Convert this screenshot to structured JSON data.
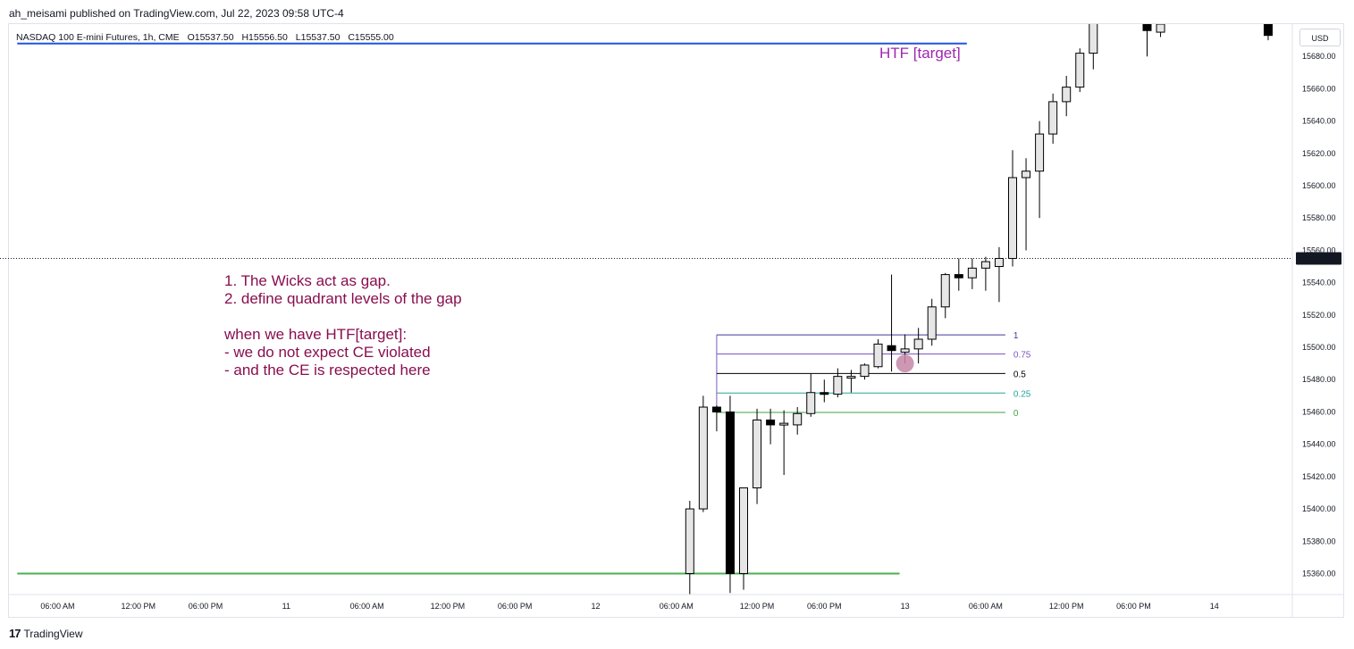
{
  "header": {
    "published": "ah_meisami published on TradingView.com, Jul 22, 2023 09:58 UTC-4"
  },
  "legend": {
    "symbol": "NASDAQ 100 E-mini Futures, 1h, CME",
    "open": "O15537.50",
    "high": "H15556.50",
    "low": "L15537.50",
    "close": "C15555.00"
  },
  "currency": "USD",
  "annotation": "1. The Wicks act as gap.\n2. define quadrant levels of the gap\n\nwhen we have HTF[target]:\n- we do not expect CE violated\n- and the CE is respected here",
  "htf_label": "HTF [target]",
  "footer": {
    "brand": "TradingView",
    "logo": "17"
  },
  "colors": {
    "bull_fill": "#e6e6e6",
    "bear_fill": "#000000",
    "candle_border": "#000000",
    "blue_line": "#1e53e5",
    "green_line": "#4caf50",
    "annotation": "#880e4f",
    "htf": "#9c27b0",
    "circle": "#c586a8"
  },
  "chart_data": {
    "type": "candlestick",
    "y_axis": {
      "ylim": [
        15347,
        15700
      ],
      "ticks": [
        15360,
        15380,
        15400,
        15420,
        15440,
        15460,
        15480,
        15500,
        15520,
        15540,
        15560,
        15580,
        15600,
        15620,
        15640,
        15660,
        15680
      ],
      "tick_labels": [
        "15360.00",
        "15380.00",
        "15400.00",
        "15420.00",
        "15440.00",
        "15460.00",
        "15480.00",
        "15500.00",
        "15520.00",
        "15540.00",
        "15560.00",
        "15580.00",
        "15600.00",
        "15620.00",
        "15640.00",
        "15660.00",
        "15680.00"
      ]
    },
    "x_axis": {
      "bar_range": [
        -54,
        56
      ],
      "ticks": [
        {
          "bar": -51,
          "label": "06:00 AM"
        },
        {
          "bar": -45,
          "label": "12:00 PM"
        },
        {
          "bar": -40,
          "label": "06:00 PM"
        },
        {
          "bar": -34,
          "label": "11"
        },
        {
          "bar": -28,
          "label": "06:00 AM"
        },
        {
          "bar": -22,
          "label": "12:00 PM"
        },
        {
          "bar": -17,
          "label": "06:00 PM"
        },
        {
          "bar": -11,
          "label": "12"
        },
        {
          "bar": -5,
          "label": "06:00 AM"
        },
        {
          "bar": 1,
          "label": "12:00 PM"
        },
        {
          "bar": 6,
          "label": "06:00 PM"
        },
        {
          "bar": 12,
          "label": "13"
        },
        {
          "bar": 18,
          "label": "06:00 AM"
        },
        {
          "bar": 24,
          "label": "12:00 PM"
        },
        {
          "bar": 29,
          "label": "06:00 PM"
        },
        {
          "bar": 35,
          "label": "14"
        }
      ]
    },
    "last_price": {
      "value": 15555,
      "label": "15555.00"
    },
    "candles": [
      {
        "bar": -4,
        "o": 15360,
        "h": 15405,
        "l": 15347,
        "c": 15400
      },
      {
        "bar": -3,
        "o": 15400,
        "h": 15470,
        "l": 15398,
        "c": 15463
      },
      {
        "bar": -2,
        "o": 15463,
        "h": 15464,
        "l": 15448,
        "c": 15460
      },
      {
        "bar": -1,
        "o": 15460,
        "h": 15470,
        "l": 15348,
        "c": 15360
      },
      {
        "bar": 0,
        "o": 15360,
        "h": 15413,
        "l": 15350,
        "c": 15413
      },
      {
        "bar": 1,
        "o": 15413,
        "h": 15462,
        "l": 15403,
        "c": 15455
      },
      {
        "bar": 2,
        "o": 15455,
        "h": 15462,
        "l": 15440,
        "c": 15452
      },
      {
        "bar": 3,
        "o": 15452,
        "h": 15461,
        "l": 15421,
        "c": 15453
      },
      {
        "bar": 4,
        "o": 15452,
        "h": 15463,
        "l": 15446,
        "c": 15459
      },
      {
        "bar": 5,
        "o": 15459,
        "h": 15484,
        "l": 15457,
        "c": 15472
      },
      {
        "bar": 6,
        "o": 15472,
        "h": 15480,
        "l": 15466,
        "c": 15471
      },
      {
        "bar": 7,
        "o": 15471,
        "h": 15487,
        "l": 15469,
        "c": 15482
      },
      {
        "bar": 8,
        "o": 15482,
        "h": 15486,
        "l": 15472,
        "c": 15482
      },
      {
        "bar": 9,
        "o": 15482,
        "h": 15490,
        "l": 15480,
        "c": 15489
      },
      {
        "bar": 10,
        "o": 15488,
        "h": 15505,
        "l": 15487,
        "c": 15502
      },
      {
        "bar": 11,
        "o": 15501,
        "h": 15545,
        "l": 15485,
        "c": 15498
      },
      {
        "bar": 12,
        "o": 15497,
        "h": 15508,
        "l": 15490,
        "c": 15499
      },
      {
        "bar": 13,
        "o": 15499,
        "h": 15512,
        "l": 15490,
        "c": 15505
      },
      {
        "bar": 14,
        "o": 15505,
        "h": 15530,
        "l": 15501,
        "c": 15525
      },
      {
        "bar": 15,
        "o": 15525,
        "h": 15546,
        "l": 15518,
        "c": 15545
      },
      {
        "bar": 16,
        "o": 15545,
        "h": 15555,
        "l": 15535,
        "c": 15543
      },
      {
        "bar": 17,
        "o": 15543,
        "h": 15555,
        "l": 15536,
        "c": 15549
      },
      {
        "bar": 18,
        "o": 15549,
        "h": 15556,
        "l": 15535,
        "c": 15553
      },
      {
        "bar": 19,
        "o": 15550,
        "h": 15562,
        "l": 15528,
        "c": 15555
      },
      {
        "bar": 20,
        "o": 15555,
        "h": 15622,
        "l": 15550,
        "c": 15605
      },
      {
        "bar": 21,
        "o": 15605,
        "h": 15617,
        "l": 15560,
        "c": 15609
      },
      {
        "bar": 22,
        "o": 15609,
        "h": 15640,
        "l": 15580,
        "c": 15632
      },
      {
        "bar": 23,
        "o": 15632,
        "h": 15657,
        "l": 15626,
        "c": 15652
      },
      {
        "bar": 24,
        "o": 15652,
        "h": 15668,
        "l": 15643,
        "c": 15661
      },
      {
        "bar": 25,
        "o": 15661,
        "h": 15685,
        "l": 15658,
        "c": 15682
      },
      {
        "bar": 26,
        "o": 15682,
        "h": 15705,
        "l": 15672,
        "c": 15703
      },
      {
        "bar": 30,
        "o": 15700,
        "h": 15708,
        "l": 15680,
        "c": 15696
      },
      {
        "bar": 31,
        "o": 15695,
        "h": 15708,
        "l": 15692,
        "c": 15700
      },
      {
        "bar": 39,
        "o": 15700,
        "h": 15708,
        "l": 15690,
        "c": 15693
      }
    ],
    "horizontal_lines": [
      {
        "name": "htf-target-line",
        "value": 15688,
        "bar_start": -54,
        "bar_end": 16,
        "color": "#1e53e5"
      },
      {
        "name": "low-line",
        "value": 15360,
        "bar_start": -54,
        "bar_end": 11,
        "color": "#4caf50"
      }
    ],
    "fib_levels": {
      "bar_start": -2,
      "bar_end": 18,
      "levels": [
        {
          "ratio": 1,
          "label": "1",
          "value": 15507.7,
          "color": "#3f3a96"
        },
        {
          "ratio": 0.75,
          "label": "0.75",
          "value": 15495.9,
          "color": "#7e57c2"
        },
        {
          "ratio": 0.5,
          "label": "0.5",
          "value": 15483.8,
          "color": "#000000"
        },
        {
          "ratio": 0.25,
          "label": "0.25",
          "value": 15471.7,
          "color": "#26a69a"
        },
        {
          "ratio": 0,
          "label": "0",
          "value": 15459.7,
          "color": "#43a047"
        }
      ]
    },
    "markers": [
      {
        "name": "ce-touch-circle",
        "bar": 12,
        "value": 15490
      }
    ]
  }
}
